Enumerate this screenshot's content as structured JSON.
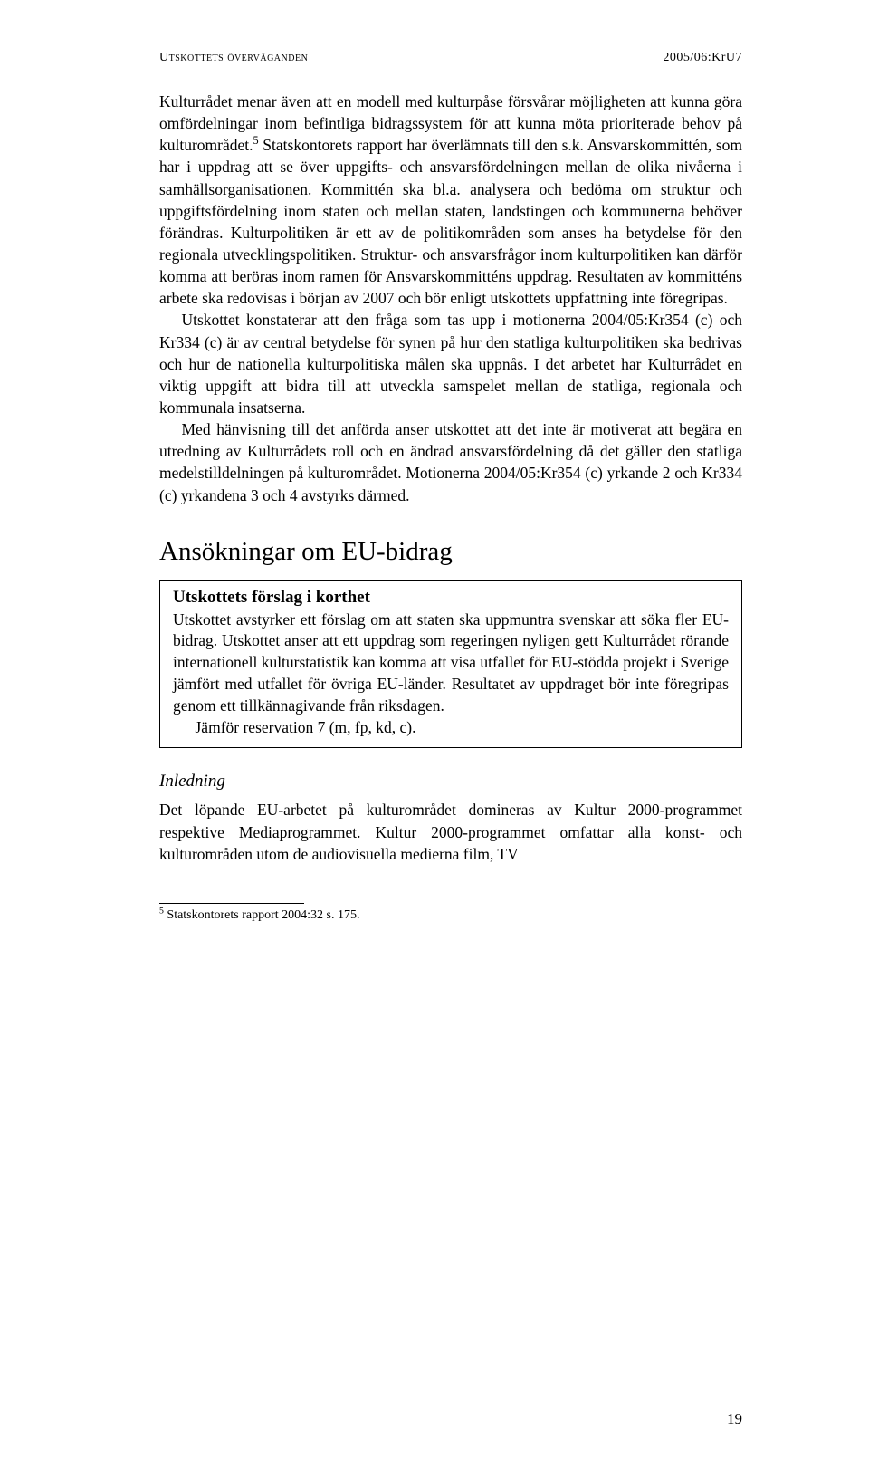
{
  "running_head": {
    "left_smallcaps": "Utskottets överväganden",
    "right": "2005/06:KrU7"
  },
  "para1_first": "Kulturrådet menar även att en modell med kulturpåse försvårar möjligheten att kunna göra omfördelningar inom befintliga bidragssystem för att kunna möta prioriterade behov på kulturområdet.",
  "para1_sup": "5",
  "para1_rest": " Statskontorets rapport har överlämnats till den s.k. Ansvarskommittén, som har i uppdrag att se över uppgifts- och ansvarsfördelningen mellan de olika nivåerna i samhällsorganisationen. Kommittén ska bl.a. analysera och bedöma om struktur och uppgiftsfördelning inom staten och mellan staten, landstingen och kommunerna behöver förändras. Kulturpolitiken är ett av de politikområden som anses ha betydelse för den regionala utvecklingspolitiken. Struktur- och ansvarsfrågor inom kulturpolitiken kan därför komma att beröras inom ramen för Ansvarskommitténs uppdrag. Resultaten av kommitténs arbete ska redovisas i början av 2007 och bör enligt utskottets uppfattning inte föregripas.",
  "para2": "Utskottet konstaterar att den fråga som tas upp i motionerna 2004/05:Kr354 (c) och Kr334 (c) är av central betydelse för synen på hur den statliga kulturpolitiken ska bedrivas och hur de nationella kulturpolitiska målen ska uppnås. I det arbetet har Kulturrådet en viktig uppgift att bidra till att utveckla samspelet mellan de statliga, regionala och kommunala insatserna.",
  "para3": "Med hänvisning till det anförda anser utskottet att det inte är motiverat att begära en utredning av Kulturrådets roll och en ändrad ansvarsfördelning då det gäller den statliga medelstilldelningen på kulturområdet. Motionerna 2004/05:Kr354 (c) yrkande 2 och Kr334 (c) yrkandena 3 och 4 avstyrks därmed.",
  "section_heading": "Ansökningar om EU-bidrag",
  "box": {
    "title": "Utskottets förslag i korthet",
    "p1": "Utskottet avstyrker ett förslag om att staten ska uppmuntra svenskar att söka fler EU-bidrag. Utskottet anser att ett uppdrag som regeringen nyligen gett Kulturrådet rörande internationell kulturstatistik kan komma att visa utfallet för EU-stödda projekt i Sverige jämfört med utfallet för övriga EU-länder. Resultatet av uppdraget bör inte föregripas genom ett tillkännagivande från riksdagen.",
    "p2": "Jämför reservation 7 (m, fp, kd, c)."
  },
  "sub_heading": "Inledning",
  "para4": "Det löpande EU-arbetet på kulturområdet domineras av Kultur 2000-programmet respektive Mediaprogrammet. Kultur 2000-programmet omfattar alla konst- och kulturområden utom de audiovisuella medierna film, TV",
  "footnote": {
    "marker": "5",
    "text": " Statskontorets rapport 2004:32 s. 175."
  },
  "page_number": "19"
}
